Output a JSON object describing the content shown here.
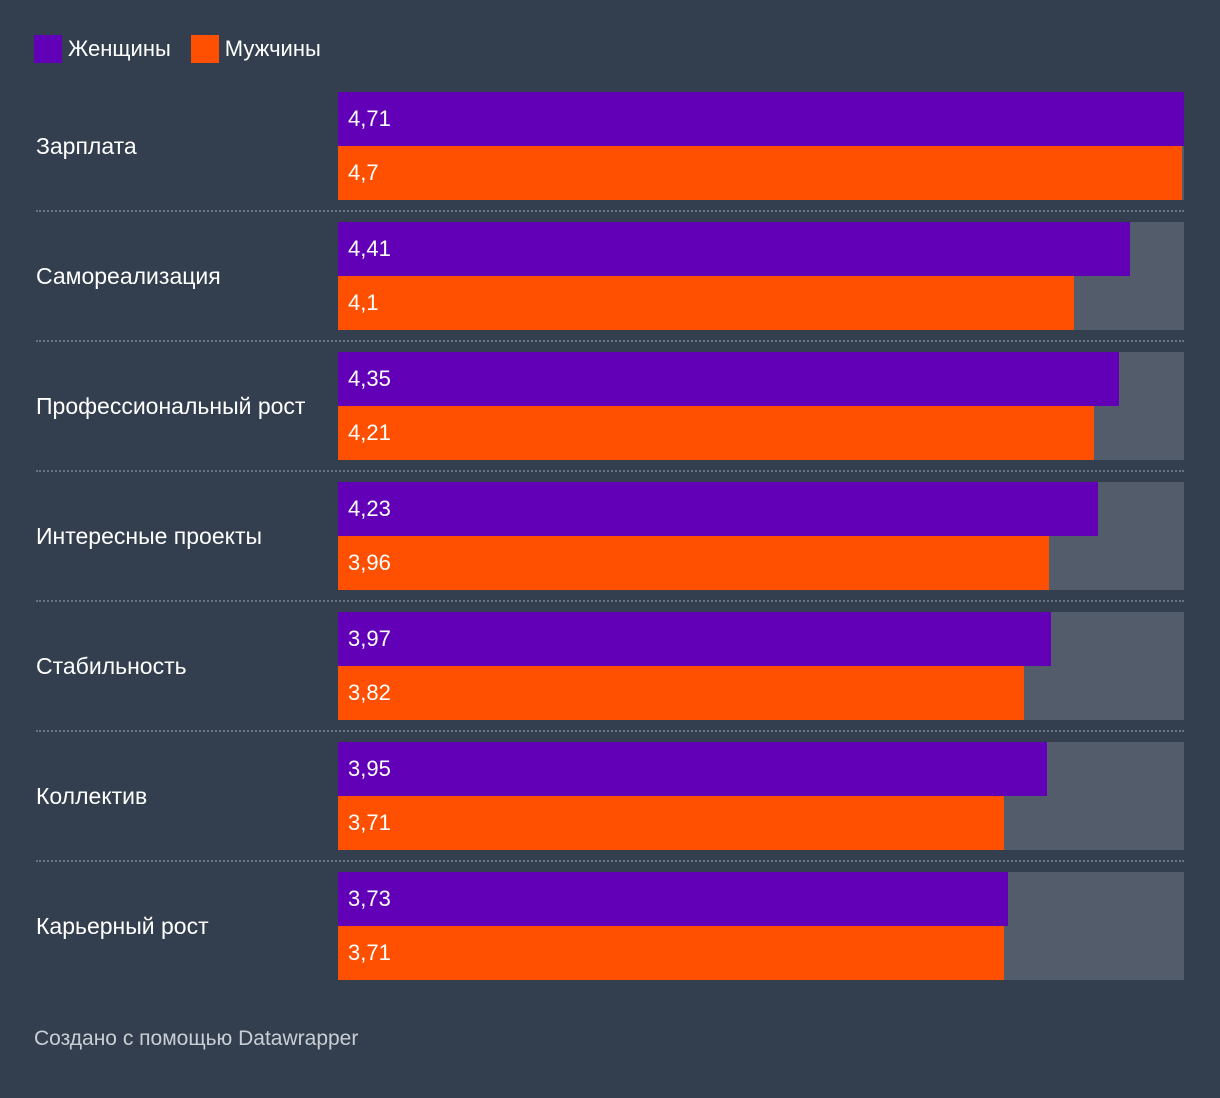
{
  "colors": {
    "background": "#333f4e",
    "track": "#535c6a",
    "women": "#6200b8",
    "men": "#ff4f00"
  },
  "legend": [
    {
      "label": "Женщины",
      "color": "#6200b8"
    },
    {
      "label": "Мужчины",
      "color": "#ff4f00"
    }
  ],
  "chart_data": {
    "type": "bar",
    "orientation": "horizontal",
    "title": "",
    "xlabel": "",
    "ylabel": "",
    "xlim": [
      0,
      4.71
    ],
    "categories": [
      "Зарплата",
      "Самореализация",
      "Профессиональный рост",
      "Интересные проекты",
      "Стабильность",
      "Коллектив",
      "Карьерный рост"
    ],
    "series": [
      {
        "name": "Женщины",
        "color": "#6200b8",
        "values": [
          4.71,
          4.41,
          4.35,
          4.23,
          3.97,
          3.95,
          3.73
        ],
        "labels": [
          "4,71",
          "4,41",
          "4,35",
          "4,23",
          "3,97",
          "3,95",
          "3,73"
        ]
      },
      {
        "name": "Мужчины",
        "color": "#ff4f00",
        "values": [
          4.7,
          4.1,
          4.21,
          3.96,
          3.82,
          3.71,
          3.71
        ],
        "labels": [
          "4,7",
          "4,1",
          "4,21",
          "3,96",
          "3,82",
          "3,71",
          "3,71"
        ]
      }
    ]
  },
  "footer": {
    "credit": "Создано с помощью Datawrapper"
  }
}
